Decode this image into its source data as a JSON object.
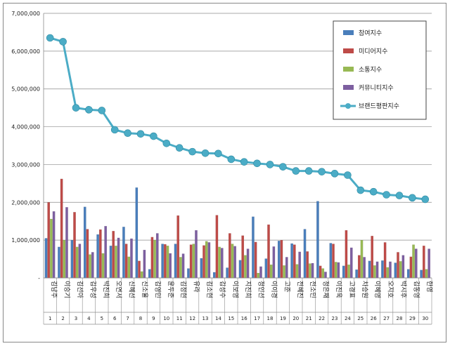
{
  "chart_data": {
    "type": "bar",
    "title": "",
    "xlabel": "",
    "ylabel": "",
    "ylim": [
      0,
      7000000
    ],
    "y_ticks": [
      "7,000,000",
      "6,000,000",
      "5,000,000",
      "4,000,000",
      "3,000,000",
      "2,000,000",
      "1,000,000",
      "-"
    ],
    "grid": true,
    "legend_position": "top-right",
    "categories": [
      "김남주",
      "이승기",
      "김선아",
      "김우성",
      "박진희",
      "오연서",
      "신혜선",
      "신소율",
      "김영민",
      "윤두준",
      "김정현",
      "유라",
      "김소현",
      "김성수",
      "이보영",
      "지진희",
      "정인선",
      "이이경",
      "고준",
      "전혜진",
      "전소민",
      "정은채",
      "이진욱",
      "고경표",
      "차승원",
      "이혜영",
      "오지호",
      "박시후",
      "김동영",
      "한영"
    ],
    "indices": [
      "1",
      "2",
      "3",
      "4",
      "5",
      "6",
      "7",
      "8",
      "9",
      "10",
      "11",
      "12",
      "13",
      "14",
      "15",
      "16",
      "17",
      "18",
      "19",
      "20",
      "21",
      "22",
      "23",
      "24",
      "25",
      "26",
      "27",
      "28",
      "29",
      "30"
    ],
    "series": [
      {
        "name": "참여지수",
        "type": "bar",
        "color": "#4a7ebb",
        "values": [
          1050000,
          820000,
          1000000,
          1880000,
          1150000,
          850000,
          1350000,
          2390000,
          230000,
          900000,
          900000,
          250000,
          520000,
          150000,
          270000,
          470000,
          1620000,
          510000,
          980000,
          910000,
          1290000,
          2030000,
          920000,
          320000,
          220000,
          450000,
          460000,
          400000,
          230000,
          210000
        ]
      },
      {
        "name": "미디어지수",
        "type": "bar",
        "color": "#be4b48",
        "values": [
          2000000,
          2620000,
          1740000,
          1290000,
          1280000,
          1240000,
          900000,
          450000,
          1080000,
          890000,
          1650000,
          880000,
          860000,
          1660000,
          1180000,
          1120000,
          950000,
          1410000,
          1000000,
          880000,
          700000,
          320000,
          900000,
          1260000,
          600000,
          1110000,
          940000,
          680000,
          560000,
          850000
        ]
      },
      {
        "name": "소통지수",
        "type": "bar",
        "color": "#98b954",
        "values": [
          1560000,
          1000000,
          820000,
          620000,
          650000,
          850000,
          560000,
          170000,
          1000000,
          850000,
          550000,
          900000,
          970000,
          820000,
          900000,
          600000,
          130000,
          350000,
          330000,
          360000,
          380000,
          250000,
          420000,
          350000,
          1000000,
          330000,
          280000,
          440000,
          880000,
          230000
        ]
      },
      {
        "name": "커뮤니티지수",
        "type": "bar",
        "color": "#7d5fa0",
        "values": [
          1760000,
          1870000,
          900000,
          680000,
          1370000,
          1060000,
          1040000,
          740000,
          1180000,
          650000,
          640000,
          1260000,
          940000,
          790000,
          840000,
          770000,
          300000,
          830000,
          550000,
          690000,
          390000,
          160000,
          410000,
          800000,
          550000,
          430000,
          430000,
          600000,
          770000,
          770000
        ]
      },
      {
        "name": "브랜드평판지수",
        "type": "line",
        "color": "#4bacc6",
        "values": [
          6350000,
          6250000,
          4500000,
          4450000,
          4430000,
          3920000,
          3830000,
          3810000,
          3750000,
          3560000,
          3440000,
          3340000,
          3300000,
          3290000,
          3140000,
          3070000,
          3030000,
          3000000,
          2940000,
          2830000,
          2830000,
          2810000,
          2760000,
          2720000,
          2320000,
          2280000,
          2200000,
          2180000,
          2120000,
          2080000
        ]
      }
    ]
  }
}
